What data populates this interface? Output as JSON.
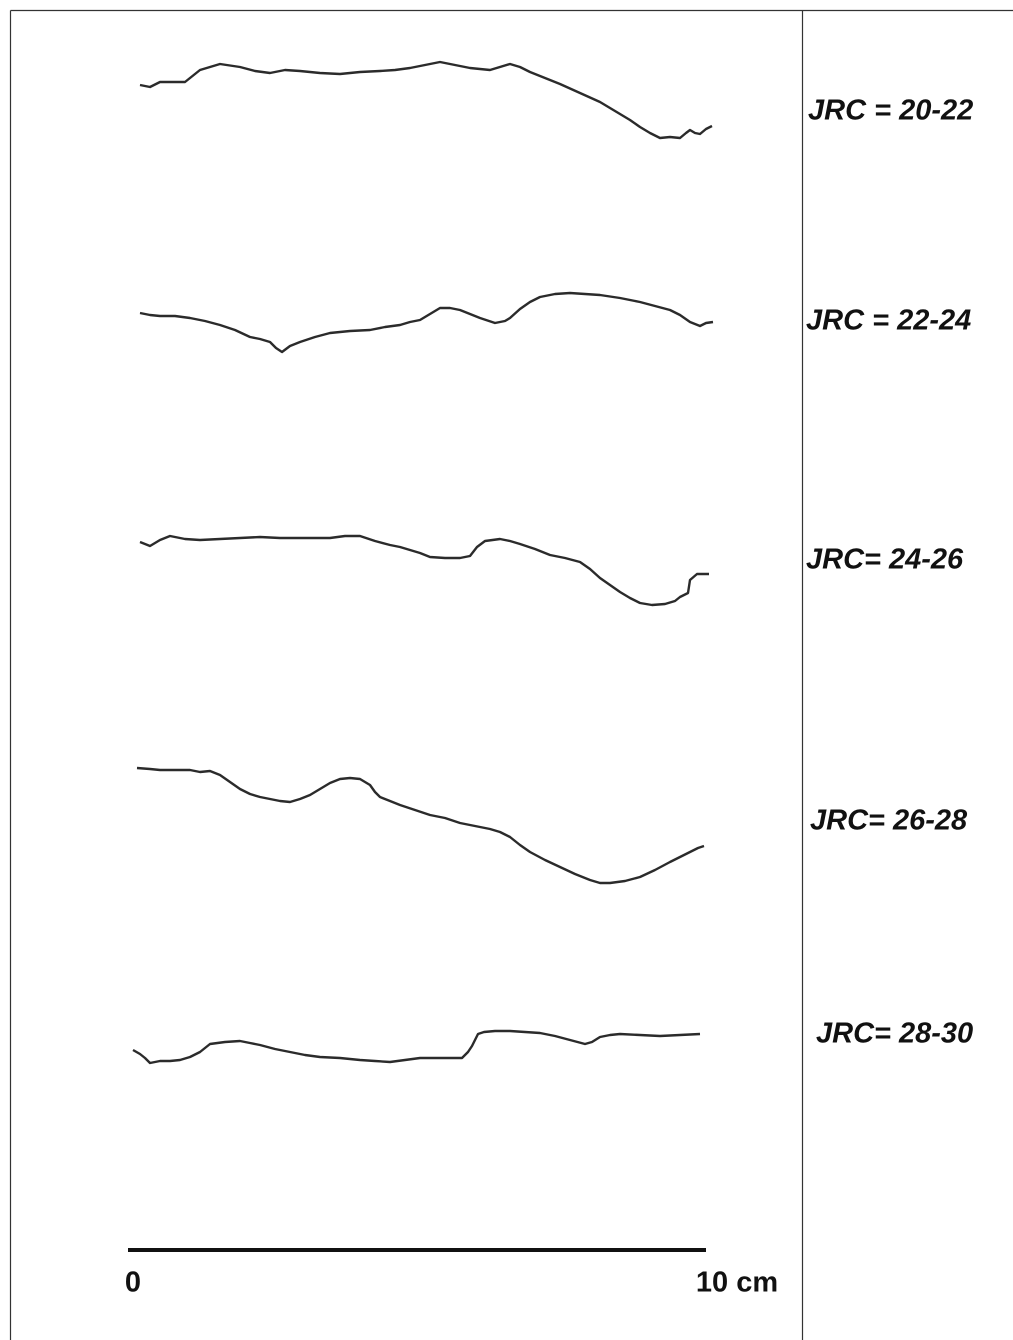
{
  "profiles": [
    {
      "label": "JRC = 20-22"
    },
    {
      "label": "JRC = 22-24"
    },
    {
      "label": "JRC= 24-26"
    },
    {
      "label": "JRC= 26-28"
    },
    {
      "label": "JRC= 28-30"
    }
  ],
  "scale": {
    "start": "0",
    "end": "10 cm"
  }
}
